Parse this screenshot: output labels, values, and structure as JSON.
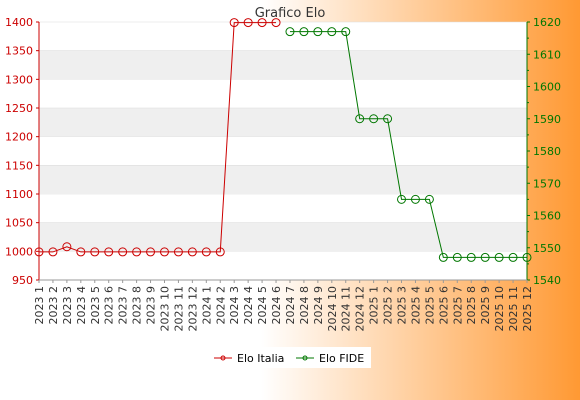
{
  "colors": {
    "italia": "#cc0000",
    "fide": "#007700",
    "band": "#efefef",
    "plot_bg": "#ffffff",
    "bg_left": "#ffffff",
    "bg_right": "#ff9933"
  },
  "chart_data": {
    "type": "line",
    "title": "Grafico Elo",
    "categories": [
      "2023 1",
      "2023 2",
      "2023 3",
      "2023 4",
      "2023 5",
      "2023 6",
      "2023 7",
      "2023 8",
      "2023 9",
      "2023 10",
      "2023 11",
      "2023 12",
      "2024 1",
      "2024 2",
      "2024 3",
      "2024 4",
      "2024 5",
      "2024 6",
      "2024 7",
      "2024 8",
      "2024 9",
      "2024 10",
      "2024 11",
      "2024 12",
      "2025 1",
      "2025 2",
      "2025 3",
      "2025 4",
      "2025 5",
      "2025 6",
      "2025 7",
      "2025 8",
      "2025 9",
      "2025 10",
      "2025 11",
      "2025 12"
    ],
    "y_left": {
      "min": 950,
      "max": 1400,
      "ticks": [
        950,
        1000,
        1050,
        1100,
        1150,
        1200,
        1250,
        1300,
        1350,
        1400
      ]
    },
    "y_right": {
      "min": 1540,
      "max": 1620,
      "ticks": [
        1540,
        1550,
        1560,
        1570,
        1580,
        1590,
        1600,
        1610,
        1620
      ]
    },
    "series": [
      {
        "name": "Elo Italia",
        "axis": "left",
        "values": [
          999,
          999,
          1008,
          999,
          999,
          999,
          999,
          999,
          999,
          999,
          999,
          999,
          999,
          999,
          1399,
          1399,
          1399,
          1399,
          null,
          null,
          null,
          null,
          null,
          null,
          null,
          null,
          null,
          null,
          null,
          null,
          null,
          null,
          null,
          null,
          null,
          null
        ]
      },
      {
        "name": "Elo FIDE",
        "axis": "right",
        "values": [
          null,
          null,
          null,
          null,
          null,
          null,
          null,
          null,
          null,
          null,
          null,
          null,
          null,
          null,
          null,
          null,
          null,
          null,
          1617,
          1617,
          1617,
          1617,
          1617,
          1590,
          1590,
          1590,
          1565,
          1565,
          1565,
          1547,
          1547,
          1547,
          1547,
          1547,
          1547,
          1547
        ]
      }
    ],
    "legend_position": "bottom-center",
    "grid": true
  }
}
